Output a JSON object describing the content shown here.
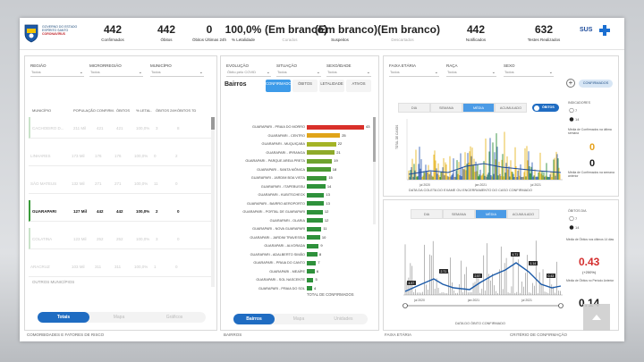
{
  "header": {
    "logo_text_1": "GOVERNO DO ESTADO",
    "logo_text_2": "ESPÍRITO SANTO",
    "logo_text_3": "CORONAVÍRUS",
    "sus_text": "SUS",
    "kpis": [
      {
        "value": "442",
        "label": "Confirmados",
        "faded": false
      },
      {
        "value": "442",
        "label": "Óbitos",
        "faded": false
      },
      {
        "value": "0",
        "label": "Óbitos Últimas 24h",
        "faded": false
      },
      {
        "value": "100,0%",
        "label": "% Letalidade",
        "faded": false
      },
      {
        "value": "(Em branco)",
        "label": "Curados",
        "faded": true
      },
      {
        "value": "(Em branco)",
        "label": "Suspeitos",
        "faded": false
      },
      {
        "value": "(Em branco)",
        "label": "Descartados",
        "faded": true
      },
      {
        "value": "442",
        "label": "Notificados",
        "faded": false
      },
      {
        "value": "632",
        "label": "Testes Realizados",
        "faded": false
      }
    ]
  },
  "left_panel": {
    "filters": [
      {
        "label": "REGIÃO",
        "value": "Todos"
      },
      {
        "label": "MICRORREGIÃO",
        "value": "Todos"
      },
      {
        "label": "MUNICÍPIO",
        "value": "Todos"
      }
    ],
    "columns": [
      "MUNICÍPIO",
      "POPULAÇÃO",
      "CONFIRM.",
      "ÓBITOS",
      "% LETAL.",
      "ÓBITOS 24H",
      "ÓBITOS 7D"
    ],
    "rows": [
      {
        "name": "CACHOEIRO D...",
        "pop": "211 Mil",
        "conf": "421",
        "obitos": "421",
        "letal": "100,0%",
        "o24": "3",
        "o7": "8",
        "state": "dim"
      },
      {
        "name": "LINHARES",
        "pop": "173 Mil",
        "conf": "176",
        "obitos": "176",
        "letal": "100,0%",
        "o24": "0",
        "o7": "2",
        "state": "normal"
      },
      {
        "name": "SÃO MATEUS",
        "pop": "132 Mil",
        "conf": "271",
        "obitos": "271",
        "letal": "100,0%",
        "o24": "11",
        "o7": "0",
        "state": "normal"
      },
      {
        "name": "GUARAPARI",
        "pop": "127 Mil",
        "conf": "442",
        "obitos": "442",
        "letal": "100,0%",
        "o24": "2",
        "o7": "0",
        "state": "sel"
      },
      {
        "name": "COLATINA",
        "pop": "123 Mil",
        "conf": "252",
        "obitos": "252",
        "letal": "100,0%",
        "o24": "3",
        "o7": "0",
        "state": "dim"
      },
      {
        "name": "ARACRUZ",
        "pop": "103 Mil",
        "conf": "311",
        "obitos": "311",
        "letal": "100,0%",
        "o24": "1",
        "o7": "0",
        "state": "normal"
      }
    ],
    "total_label": "OUTROS MUNICÍPIOS",
    "tabs": [
      "Totais",
      "Mapa",
      "Gráficos"
    ],
    "footer": "COMORBIDADES E FATORES DE RISCO"
  },
  "mid_panel": {
    "filters": [
      {
        "label": "EVOLUÇÃO",
        "value": "Óbito pelo COVID"
      },
      {
        "label": "SITUAÇÃO",
        "value": "Todos"
      },
      {
        "label": "SEXO/IDADE",
        "value": "Todos"
      }
    ],
    "title": "Bairros",
    "tabs": [
      "CONFIRMADOS",
      "ÓBITOS",
      "LETALIDADE",
      "ATIVOS"
    ],
    "bairros": [
      {
        "name": "GUARAPARI - PRAIA DO MORRO",
        "value": 43,
        "color": "#d9302a"
      },
      {
        "name": "GUARAPARI - CENTRO",
        "value": 25,
        "color": "#e0a419"
      },
      {
        "name": "GUARAPARI - MUQUIÇABA",
        "value": 22,
        "color": "#a4b426"
      },
      {
        "name": "GUARAPARI - IPIRANGA",
        "value": 21,
        "color": "#8eaa2b"
      },
      {
        "name": "GUARAPARI - PARQUE AREIA PRETA",
        "value": 19,
        "color": "#6ea32e"
      },
      {
        "name": "GUARAPARI - SANTA MÔNICA",
        "value": 18,
        "color": "#4d9b33"
      },
      {
        "name": "GUARAPARI - JARDIM BOA VISTA",
        "value": 15,
        "color": "#3a9537"
      },
      {
        "name": "GUARAPARI - ITAPEBUSSU",
        "value": 14,
        "color": "#2f923a"
      },
      {
        "name": "GUARAPARI - KUBITSCHECK",
        "value": 13,
        "color": "#2e913b"
      },
      {
        "name": "GUARAPARI - BAIRRO AEROPORTO",
        "value": 13,
        "color": "#2e913b"
      },
      {
        "name": "GUARAPARI - PORTAL DE GUARAPARI",
        "value": 12,
        "color": "#2e913b"
      },
      {
        "name": "GUARAPARI - OLARIA",
        "value": 12,
        "color": "#2e913b"
      },
      {
        "name": "GUARAPARI - NOVA GUARAPARI",
        "value": 11,
        "color": "#2e913b"
      },
      {
        "name": "GUARAPARI - JARDIM TRAVESSIA",
        "value": 10,
        "color": "#2e913b"
      },
      {
        "name": "GUARAPARI - ALVORADA",
        "value": 9,
        "color": "#2e913b"
      },
      {
        "name": "GUARAPARI - ADALBERTO SIMÃO",
        "value": 8,
        "color": "#2e913b"
      },
      {
        "name": "GUARAPARI - PRAIA DO CANTO",
        "value": 7,
        "color": "#2e913b"
      },
      {
        "name": "GUARAPARI - MEAÍPE",
        "value": 6,
        "color": "#2e913b"
      },
      {
        "name": "GUARAPARI - SOL NASCENTE",
        "value": 5,
        "color": "#2e913b"
      },
      {
        "name": "GUARAPARI - PRAIA DO SOL",
        "value": 4,
        "color": "#2e913b"
      }
    ],
    "axis_label": "TOTAL DE CONFIRMADOS",
    "bottom_tabs": [
      "Bairros",
      "Mapa",
      "Unidades"
    ],
    "footer": "BAIRROS"
  },
  "right_top": {
    "filters": [
      {
        "label": "FAIXA ETÁRIA",
        "value": "Todos"
      },
      {
        "label": "RAÇA",
        "value": "Todos"
      },
      {
        "label": "SEXO",
        "value": "Todos"
      }
    ],
    "confirm_btn": "CONFIRMADOS",
    "seg_tabs": [
      "DIA",
      "SEMANA",
      "MÉDIA",
      "ACUMULADO"
    ],
    "active_seg": 2,
    "toggle_label": "ÓBITOS",
    "legend_title": "INDICADORES",
    "legend_items": [
      "7",
      "14"
    ],
    "stat_1_value": "0",
    "stat_1_label": "Média de Confirmados na última semana",
    "stat_2_value": "0",
    "stat_2_label": "Média de Confirmados na semana anterior",
    "xlabel": "DATA DA COLETA DO EXAME OU ENCERRAMENTO DO CASO CONFIRMADO",
    "ylabel": "TOTAL DE CASOS",
    "x_ticks": [
      "jul 2020",
      "jan 2021",
      "jul 2021"
    ]
  },
  "right_bot": {
    "seg_tabs": [
      "DIA",
      "SEMANA",
      "MÉDIA",
      "ACUMULADO"
    ],
    "active_seg": 2,
    "legend_title": "ÓBITOS DIA",
    "legend_items": [
      "7",
      "14"
    ],
    "stat_1_value": "0.43",
    "stat_1_sub": "(+200%)",
    "stat_1_label": "Média de Óbitos nos últimos 14 dias",
    "stat_2_value": "0.14",
    "stat_2_label": "Média de Óbitos no Período Anterior",
    "xlabel": "DATA DO ÓBITO CONFIRMADO",
    "x_ticks": [
      "jul 2020",
      "jan 2021",
      "jul 2021"
    ],
    "data_labels": [
      "4.57",
      "2.71",
      "2.57",
      "4.71",
      "1.14",
      "0.43"
    ]
  },
  "footer_tabs": [
    "FAIXA ETÁRIA",
    "CRITÉRIO DE CONFIRMAÇÃO"
  ]
}
